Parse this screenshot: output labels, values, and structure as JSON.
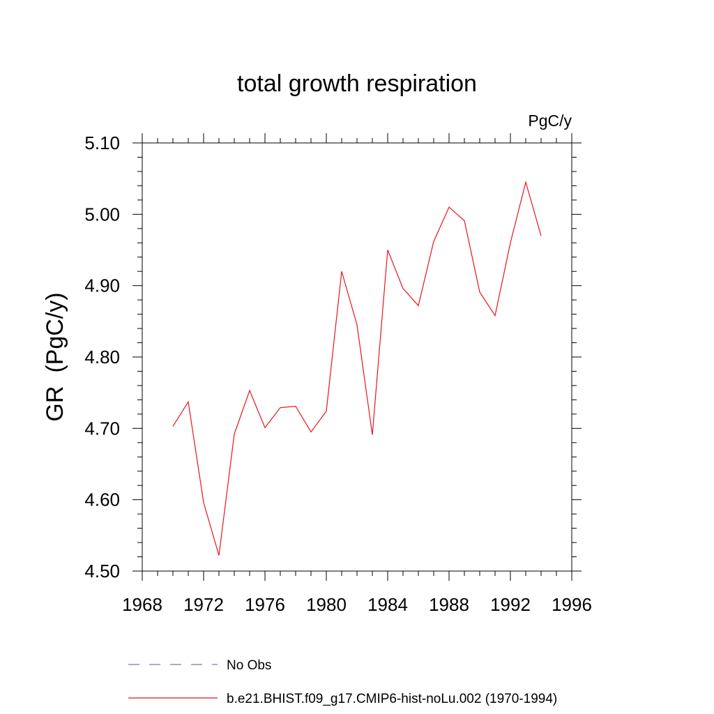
{
  "chart_data": {
    "type": "line",
    "title": "total growth respiration",
    "units_label": "PgC/y",
    "ylabel": "GR  (PgC/y)",
    "xlabel": "",
    "xlim": [
      1968,
      1996
    ],
    "ylim": [
      4.5,
      5.1
    ],
    "x_ticks": [
      "1968",
      "1972",
      "1976",
      "1980",
      "1984",
      "1988",
      "1992",
      "1996"
    ],
    "y_ticks": [
      "4.50",
      "4.60",
      "4.70",
      "4.80",
      "4.90",
      "5.00",
      "5.10"
    ],
    "grid": false,
    "legend_position": "bottom",
    "series": [
      {
        "name": "No Obs",
        "color": "#7b73c8",
        "style": "dashed",
        "x": [],
        "values": []
      },
      {
        "name": "b.e21.BHIST.f09_g17.CMIP6-hist-noLu.002 (1970-1994)",
        "color": "#e8141c",
        "style": "solid",
        "x": [
          1970,
          1971,
          1972,
          1973,
          1974,
          1975,
          1976,
          1977,
          1978,
          1979,
          1980,
          1981,
          1982,
          1983,
          1984,
          1985,
          1986,
          1987,
          1988,
          1989,
          1990,
          1991,
          1992,
          1993,
          1994
        ],
        "values": [
          4.703,
          4.737,
          4.596,
          4.522,
          4.692,
          4.753,
          4.701,
          4.729,
          4.731,
          4.695,
          4.724,
          4.92,
          4.845,
          4.691,
          4.95,
          4.896,
          4.872,
          4.962,
          5.01,
          4.991,
          4.891,
          4.858,
          4.96,
          5.045,
          4.97
        ]
      }
    ]
  }
}
